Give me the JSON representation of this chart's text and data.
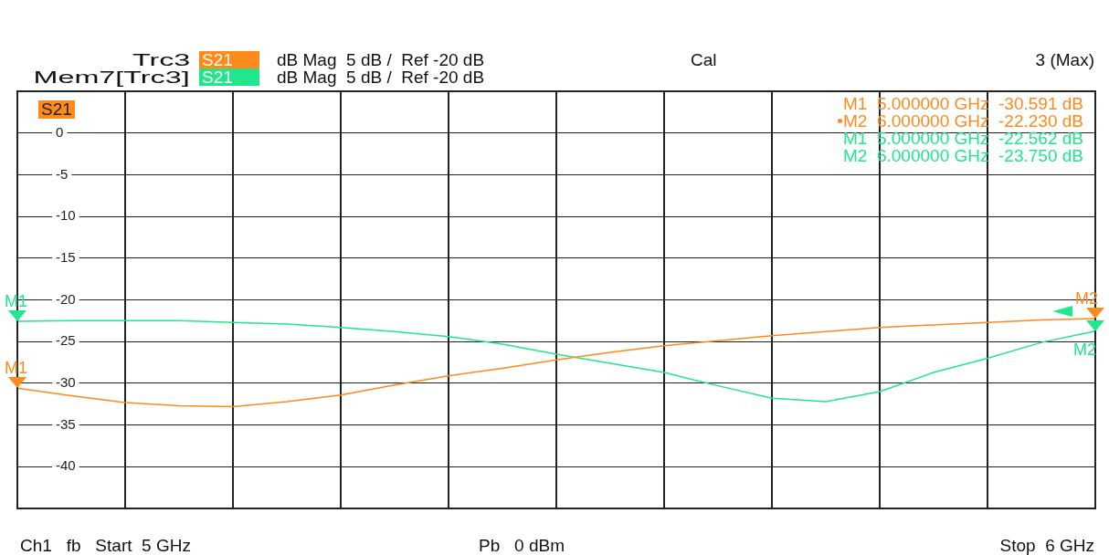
{
  "chart_data": {
    "type": "line",
    "legend": "top",
    "grid": true,
    "tick_labels": "y",
    "marker": "none",
    "line_style": "solid",
    "categories": [
      null,
      null,
      null,
      null,
      null,
      null,
      null,
      null,
      null,
      null,
      null,
      null,
      null,
      null,
      null,
      null,
      null,
      null,
      null,
      null,
      null
    ],
    "ylim": [
      -45,
      5
    ],
    "yticks": [
      0,
      -5,
      -10,
      -15,
      -20,
      -25,
      -30,
      -35,
      -40
    ],
    "series": [
      {
        "name": "Trc3",
        "color": "#ff8a1c",
        "values": [
          -30.591,
          -31.5,
          -32.3,
          -32.7,
          -32.8,
          -32.2,
          -31.4,
          -30.2,
          -29.1,
          -28.2,
          -27.2,
          -26.3,
          -25.5,
          -24.9,
          -24.3,
          -23.8,
          -23.3,
          -23.0,
          -22.7,
          -22.4,
          -22.23
        ]
      },
      {
        "name": "Mem7[Trc3]",
        "color": "#22e68c",
        "values": [
          -22.562,
          -22.5,
          -22.5,
          -22.5,
          -22.7,
          -22.9,
          -23.3,
          -23.8,
          -24.4,
          -25.3,
          -26.5,
          -27.6,
          -28.7,
          -30.3,
          -31.8,
          -32.2,
          -31.0,
          -28.7,
          -27.0,
          -25.1,
          -23.75
        ]
      }
    ],
    "annotations": [
      "S21",
      "dB Mag  5 dB /  Ref -20 dB",
      "S21",
      "dB Mag  5 dB /  Ref -20 dB",
      "Cal",
      "3 (Max)",
      "S21",
      "M1  5.000000 GHz  -30.591 dB",
      "•M2  6.000000 GHz  -22.230 dB",
      "M1  5.000000 GHz  -22.562 dB",
      "M2  6.000000 GHz  -23.750 dB",
      "Ch1   fb   Start  5 GHz",
      "Pb   0 dBm",
      "Stop  6 GHz",
      "M1",
      "M2",
      "M1",
      "M2"
    ]
  }
}
